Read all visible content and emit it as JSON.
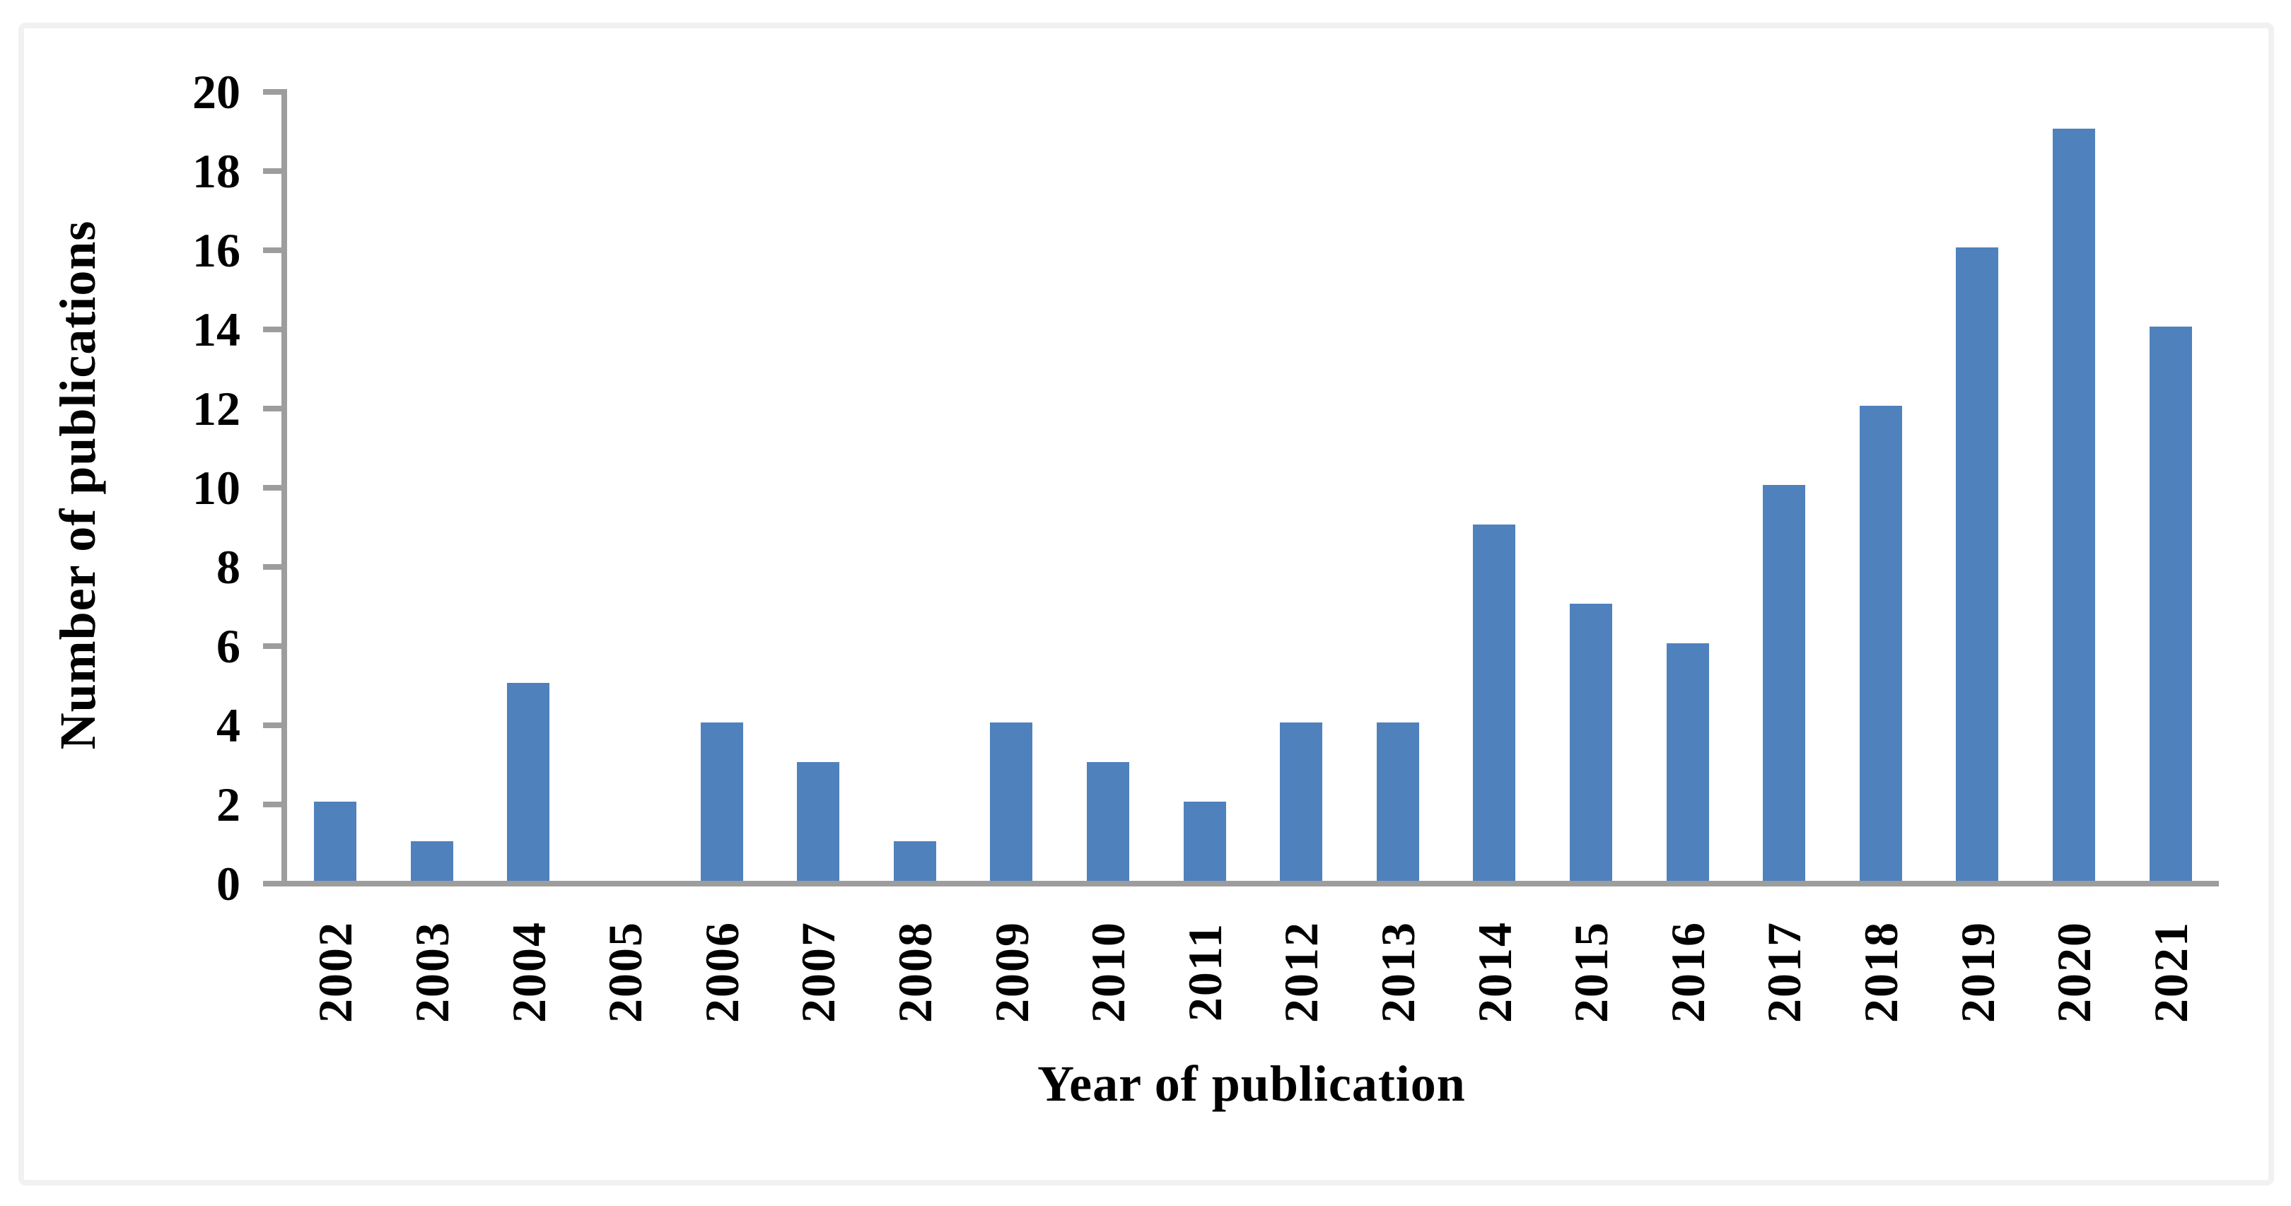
{
  "chart_data": {
    "type": "bar",
    "title": "",
    "xlabel": "Year of publication",
    "ylabel": "Number of publications",
    "categories": [
      "2002",
      "2003",
      "2004",
      "2005",
      "2006",
      "2007",
      "2008",
      "2009",
      "2010",
      "2011",
      "2012",
      "2013",
      "2014",
      "2015",
      "2016",
      "2017",
      "2018",
      "2019",
      "2020",
      "2021"
    ],
    "values": [
      2,
      1,
      5,
      0,
      4,
      3,
      1,
      4,
      3,
      2,
      4,
      4,
      9,
      7,
      6,
      10,
      12,
      16,
      19,
      14
    ],
    "ylim": [
      0,
      20
    ],
    "yticks": [
      0,
      2,
      4,
      6,
      8,
      10,
      12,
      14,
      16,
      18,
      20
    ],
    "ytick_step": 2,
    "grid": false,
    "legend": null,
    "bar_color": "#4F81BD",
    "axis_color": "#9D9D9D",
    "text_color": "#000000",
    "frame_color": "#F1F1F1",
    "background": "#FFFFFF"
  }
}
